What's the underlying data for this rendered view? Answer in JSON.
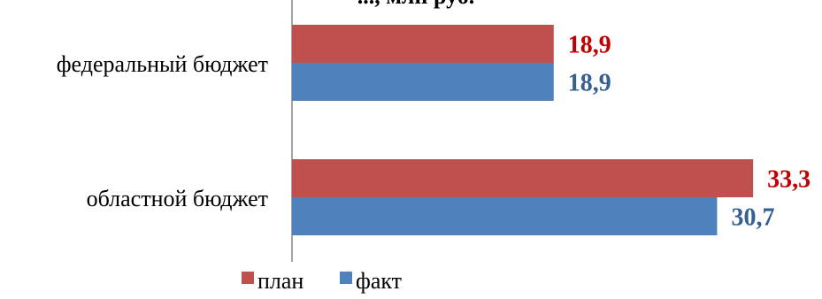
{
  "chart_data": {
    "type": "bar",
    "orientation": "horizontal",
    "title": "..., млн руб.",
    "categories": [
      "федеральный бюджет",
      "областной бюджет"
    ],
    "series": [
      {
        "name": "план",
        "values": [
          18.9,
          33.3
        ],
        "labels": [
          "18,9",
          "33,3"
        ],
        "color": "#c0504d",
        "label_color": "#c00000"
      },
      {
        "name": "факт",
        "values": [
          18.9,
          30.7
        ],
        "labels": [
          "18,9",
          "30,7"
        ],
        "color": "#4f81bd",
        "label_color": "#376092"
      }
    ],
    "xlim": [
      0,
      38
    ],
    "grid": false,
    "legend_position": "bottom"
  }
}
